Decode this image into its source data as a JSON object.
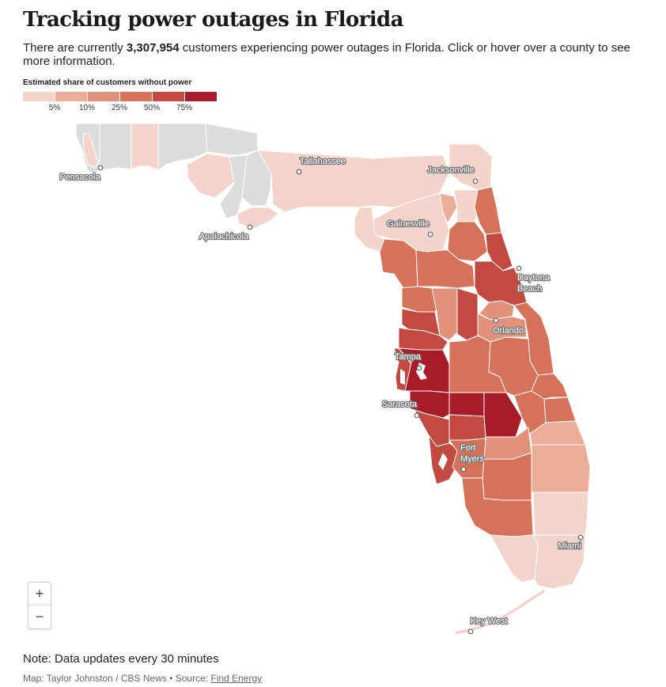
{
  "title": "Tracking power outages in Florida",
  "intro": {
    "prefix": "There are currently ",
    "count": "3,307,954",
    "suffix": " customers experiencing power outages in Florida. Click or hover over a county to see more information."
  },
  "legend": {
    "title": "Estimated share of customers without power",
    "colors": [
      "#f4d3cb",
      "#ebad98",
      "#e2917a",
      "#d6715a",
      "#c24a40",
      "#a61c28"
    ],
    "ticks": [
      "5%",
      "10%",
      "25%",
      "50%",
      "75%"
    ]
  },
  "colors": {
    "no_data": "#dcdcdc",
    "border": "#ffffff"
  },
  "cities": [
    {
      "name": "Pensacola"
    },
    {
      "name": "Tallahassee"
    },
    {
      "name": "Jacksonville"
    },
    {
      "name": "Apalachicola"
    },
    {
      "name": "Gainesville"
    },
    {
      "name": "Daytona Beach"
    },
    {
      "name": "Orlando"
    },
    {
      "name": "Tampa"
    },
    {
      "name": "Sarasota"
    },
    {
      "name": "Fort Myers"
    },
    {
      "name": "Miami"
    },
    {
      "name": "Key West"
    }
  ],
  "zoom": {
    "in": "+",
    "out": "−"
  },
  "note": "Note: Data updates every 30 minutes",
  "credit": {
    "prefix": "Map: Taylor Johnston / CBS News • Source: ",
    "link": "Find Energy"
  }
}
